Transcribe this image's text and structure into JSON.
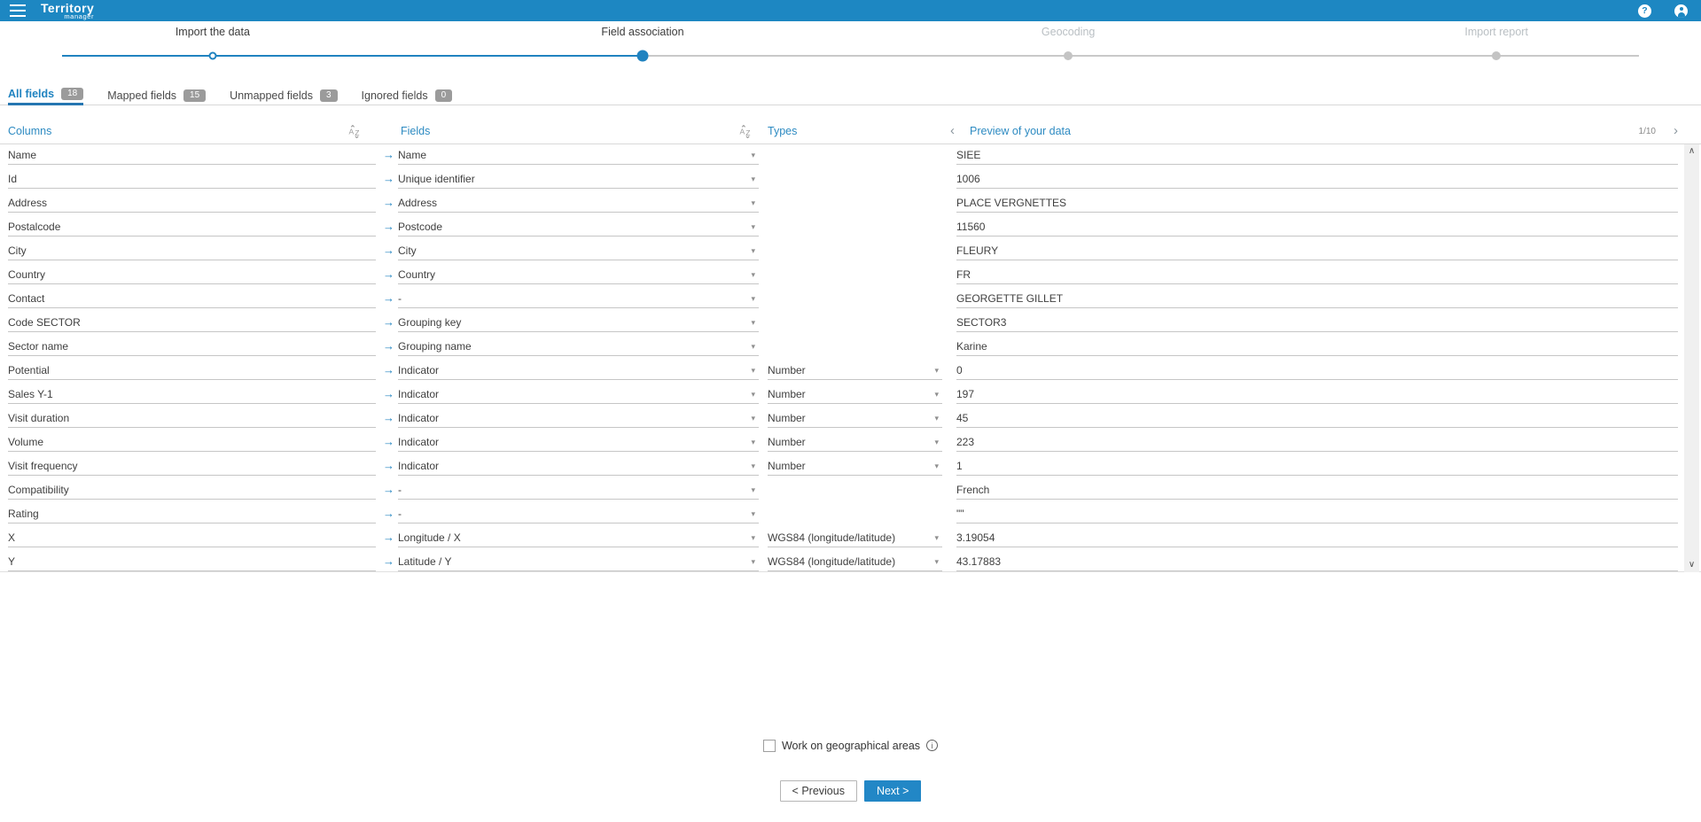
{
  "topbar": {
    "logo_line1": "Territory",
    "logo_line2": "manager"
  },
  "icons": {
    "help": "?",
    "arrow_right": "→",
    "caret_down": "▾",
    "chevron_left": "‹",
    "chevron_right": "›",
    "scroll_up": "∧",
    "scroll_down": "∨",
    "info": "i"
  },
  "stepper": {
    "steps": [
      {
        "label": "Import the data",
        "state": "done"
      },
      {
        "label": "Field association",
        "state": "current"
      },
      {
        "label": "Geocoding",
        "state": "future"
      },
      {
        "label": "Import report",
        "state": "future"
      }
    ]
  },
  "tabs": [
    {
      "label": "All fields",
      "count": "18",
      "active": true
    },
    {
      "label": "Mapped fields",
      "count": "15",
      "active": false
    },
    {
      "label": "Unmapped fields",
      "count": "3",
      "active": false
    },
    {
      "label": "Ignored fields",
      "count": "0",
      "active": false
    }
  ],
  "table": {
    "headers": {
      "columns": "Columns",
      "fields": "Fields",
      "types": "Types",
      "preview": "Preview of your data"
    },
    "pager": {
      "page": "1/10"
    },
    "rows": [
      {
        "column": "Name",
        "field": "Name",
        "type": "",
        "preview": "SIEE"
      },
      {
        "column": "Id",
        "field": "Unique identifier",
        "type": "",
        "preview": "1006"
      },
      {
        "column": "Address",
        "field": "Address",
        "type": "",
        "preview": "PLACE VERGNETTES"
      },
      {
        "column": "Postalcode",
        "field": "Postcode",
        "type": "",
        "preview": "11560"
      },
      {
        "column": "City",
        "field": "City",
        "type": "",
        "preview": "FLEURY"
      },
      {
        "column": "Country",
        "field": "Country",
        "type": "",
        "preview": "FR"
      },
      {
        "column": "Contact",
        "field": "-",
        "type": "",
        "preview": "GEORGETTE GILLET"
      },
      {
        "column": "Code SECTOR",
        "field": "Grouping key",
        "type": "",
        "preview": "SECTOR3"
      },
      {
        "column": "Sector name",
        "field": "Grouping name",
        "type": "",
        "preview": "Karine"
      },
      {
        "column": "Potential",
        "field": "Indicator",
        "type": "Number",
        "preview": "0"
      },
      {
        "column": "Sales Y-1",
        "field": "Indicator",
        "type": "Number",
        "preview": "197"
      },
      {
        "column": "Visit duration",
        "field": "Indicator",
        "type": "Number",
        "preview": "45"
      },
      {
        "column": "Volume",
        "field": "Indicator",
        "type": "Number",
        "preview": "223"
      },
      {
        "column": "Visit frequency",
        "field": "Indicator",
        "type": "Number",
        "preview": "1"
      },
      {
        "column": "Compatibility",
        "field": "-",
        "type": "",
        "preview": "French"
      },
      {
        "column": "Rating",
        "field": "-",
        "type": "",
        "preview": "\"\""
      },
      {
        "column": "X",
        "field": "Longitude / X",
        "type": "WGS84 (longitude/latitude)",
        "preview": "3.19054"
      },
      {
        "column": "Y",
        "field": "Latitude / Y",
        "type": "WGS84 (longitude/latitude)",
        "preview": "43.17883"
      }
    ]
  },
  "footer": {
    "checkbox_label": "Work on geographical areas",
    "previous_label": "< Previous",
    "next_label": "Next >"
  },
  "colors": {
    "topbar": "#1d87c2",
    "accent": "#2083c0",
    "next_button": "#2287c6"
  }
}
